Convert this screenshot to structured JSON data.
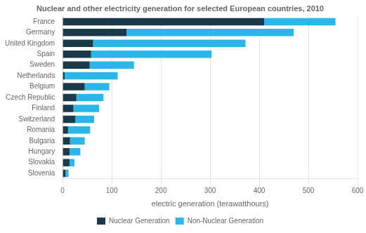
{
  "chart_data": {
    "type": "bar",
    "orientation": "horizontal",
    "stacked": true,
    "title": "Nuclear and other electricity generation for selected European countries, 2010",
    "xlabel": "electric generation (terawatthours)",
    "categories": [
      "Slovenia",
      "Slovakia",
      "Hungary",
      "Bulgaria",
      "Romania",
      "Switzerland",
      "Finland",
      "Czech Republic",
      "Belgium",
      "Netherlands",
      "Sweden",
      "Spain",
      "United Kingdom",
      "Germany",
      "France"
    ],
    "series": [
      {
        "name": "Nuclear Generation",
        "color": "#1a3a4a",
        "values": [
          6,
          14,
          14,
          15,
          11,
          26,
          22,
          28,
          45,
          4,
          55,
          58,
          62,
          130,
          410
        ]
      },
      {
        "name": "Non-Nuclear Generation",
        "color": "#29b6e8",
        "values": [
          6,
          10,
          22,
          30,
          45,
          38,
          52,
          55,
          50,
          108,
          90,
          245,
          310,
          340,
          145
        ]
      }
    ],
    "xlim": [
      0,
      600
    ],
    "xticks": [
      0,
      100,
      200,
      300,
      400,
      500,
      600
    ],
    "grid": true,
    "legend": "bottom"
  }
}
